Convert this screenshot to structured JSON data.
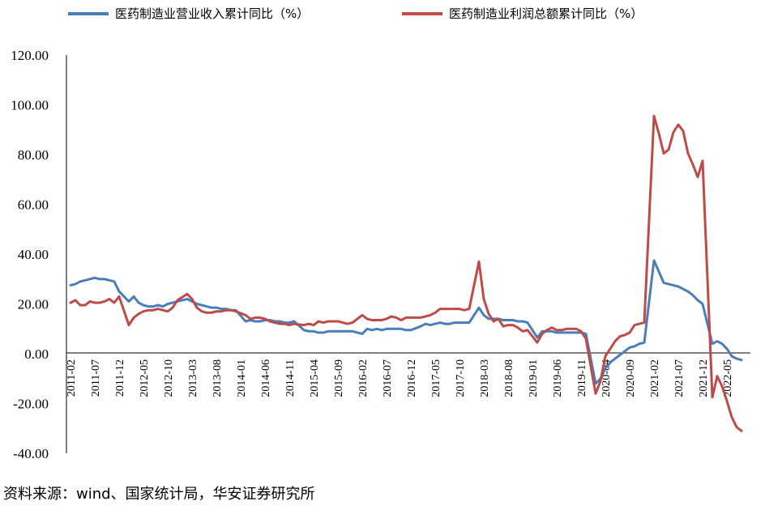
{
  "chart_data": {
    "type": "line",
    "title": "",
    "xlabel": "",
    "ylabel": "",
    "ylim": [
      -40,
      120
    ],
    "yticks": [
      "120.00",
      "100.00",
      "80.00",
      "60.00",
      "40.00",
      "20.00",
      "0.00",
      "-20.00",
      "-40.00"
    ],
    "xticks": [
      "2011-02",
      "2011-07",
      "2011-12",
      "2012-05",
      "2012-10",
      "2013-03",
      "2013-08",
      "2014-01",
      "2014-06",
      "2014-11",
      "2015-04",
      "2015-09",
      "2016-02",
      "2016-07",
      "2016-12",
      "2017-05",
      "2017-10",
      "2018-03",
      "2018-08",
      "2019-01",
      "2019-06",
      "2019-11",
      "2020-04",
      "2020-09",
      "2021-02",
      "2021-07",
      "2021-12",
      "2022-05"
    ],
    "grid": false,
    "legend_position": "top",
    "series": [
      {
        "name": "医药制造业营业收入累计同比（%）",
        "color": "#4A7EBB",
        "points": [
          [
            "2011-02",
            27.5
          ],
          [
            "2011-03",
            28.0
          ],
          [
            "2011-04",
            29.0
          ],
          [
            "2011-05",
            29.5
          ],
          [
            "2011-06",
            30.0
          ],
          [
            "2011-07",
            30.5
          ],
          [
            "2011-08",
            30.0
          ],
          [
            "2011-09",
            30.0
          ],
          [
            "2011-10",
            29.5
          ],
          [
            "2011-11",
            29.0
          ],
          [
            "2011-12",
            25.0
          ],
          [
            "2012-02",
            21.0
          ],
          [
            "2012-03",
            23.0
          ],
          [
            "2012-04",
            20.5
          ],
          [
            "2012-05",
            19.5
          ],
          [
            "2012-06",
            19.0
          ],
          [
            "2012-07",
            19.0
          ],
          [
            "2012-08",
            19.5
          ],
          [
            "2012-09",
            19.0
          ],
          [
            "2012-10",
            20.0
          ],
          [
            "2012-11",
            20.5
          ],
          [
            "2012-12",
            21.0
          ],
          [
            "2013-02",
            22.0
          ],
          [
            "2013-03",
            21.0
          ],
          [
            "2013-04",
            20.0
          ],
          [
            "2013-05",
            19.5
          ],
          [
            "2013-06",
            19.0
          ],
          [
            "2013-07",
            18.5
          ],
          [
            "2013-08",
            18.5
          ],
          [
            "2013-09",
            18.0
          ],
          [
            "2013-10",
            18.0
          ],
          [
            "2013-11",
            17.5
          ],
          [
            "2013-12",
            17.5
          ],
          [
            "2014-02",
            13.0
          ],
          [
            "2014-03",
            13.5
          ],
          [
            "2014-04",
            13.0
          ],
          [
            "2014-05",
            13.0
          ],
          [
            "2014-06",
            13.5
          ],
          [
            "2014-07",
            13.5
          ],
          [
            "2014-08",
            13.0
          ],
          [
            "2014-09",
            13.0
          ],
          [
            "2014-10",
            12.5
          ],
          [
            "2014-11",
            12.5
          ],
          [
            "2014-12",
            13.0
          ],
          [
            "2015-02",
            9.5
          ],
          [
            "2015-03",
            9.0
          ],
          [
            "2015-04",
            9.0
          ],
          [
            "2015-05",
            8.5
          ],
          [
            "2015-06",
            8.5
          ],
          [
            "2015-07",
            9.0
          ],
          [
            "2015-08",
            9.0
          ],
          [
            "2015-09",
            9.0
          ],
          [
            "2015-10",
            9.0
          ],
          [
            "2015-11",
            9.0
          ],
          [
            "2015-12",
            9.0
          ],
          [
            "2016-02",
            8.0
          ],
          [
            "2016-03",
            10.0
          ],
          [
            "2016-04",
            9.5
          ],
          [
            "2016-05",
            10.0
          ],
          [
            "2016-06",
            9.5
          ],
          [
            "2016-07",
            10.0
          ],
          [
            "2016-08",
            10.0
          ],
          [
            "2016-09",
            10.0
          ],
          [
            "2016-10",
            10.0
          ],
          [
            "2016-11",
            9.5
          ],
          [
            "2016-12",
            9.5
          ],
          [
            "2017-02",
            11.0
          ],
          [
            "2017-03",
            12.0
          ],
          [
            "2017-04",
            11.5
          ],
          [
            "2017-05",
            12.0
          ],
          [
            "2017-06",
            12.5
          ],
          [
            "2017-07",
            12.0
          ],
          [
            "2017-08",
            12.0
          ],
          [
            "2017-09",
            12.5
          ],
          [
            "2017-10",
            12.5
          ],
          [
            "2017-11",
            12.5
          ],
          [
            "2017-12",
            12.5
          ],
          [
            "2018-02",
            18.5
          ],
          [
            "2018-03",
            15.5
          ],
          [
            "2018-04",
            14.0
          ],
          [
            "2018-05",
            14.0
          ],
          [
            "2018-06",
            14.0
          ],
          [
            "2018-07",
            13.5
          ],
          [
            "2018-08",
            13.5
          ],
          [
            "2018-09",
            13.5
          ],
          [
            "2018-10",
            13.0
          ],
          [
            "2018-11",
            13.0
          ],
          [
            "2018-12",
            12.5
          ],
          [
            "2019-02",
            6.5
          ],
          [
            "2019-03",
            9.0
          ],
          [
            "2019-04",
            9.0
          ],
          [
            "2019-05",
            9.0
          ],
          [
            "2019-06",
            8.5
          ],
          [
            "2019-07",
            8.5
          ],
          [
            "2019-08",
            8.5
          ],
          [
            "2019-09",
            8.5
          ],
          [
            "2019-10",
            8.5
          ],
          [
            "2019-11",
            8.5
          ],
          [
            "2019-12",
            8.0
          ],
          [
            "2020-02",
            -12.0
          ],
          [
            "2020-03",
            -10.0
          ],
          [
            "2020-04",
            -6.0
          ],
          [
            "2020-05",
            -3.5
          ],
          [
            "2020-06",
            -2.0
          ],
          [
            "2020-07",
            -0.5
          ],
          [
            "2020-08",
            1.0
          ],
          [
            "2020-09",
            2.5
          ],
          [
            "2020-10",
            3.0
          ],
          [
            "2020-11",
            4.0
          ],
          [
            "2020-12",
            4.5
          ],
          [
            "2021-02",
            37.5
          ],
          [
            "2021-03",
            33.0
          ],
          [
            "2021-04",
            28.5
          ],
          [
            "2021-05",
            28.0
          ],
          [
            "2021-06",
            27.5
          ],
          [
            "2021-07",
            27.0
          ],
          [
            "2021-08",
            26.0
          ],
          [
            "2021-09",
            25.0
          ],
          [
            "2021-10",
            23.5
          ],
          [
            "2021-11",
            21.5
          ],
          [
            "2021-12",
            20.0
          ],
          [
            "2022-02",
            4.0
          ],
          [
            "2022-03",
            5.0
          ],
          [
            "2022-04",
            4.0
          ],
          [
            "2022-05",
            2.0
          ],
          [
            "2022-06",
            -1.0
          ],
          [
            "2022-07",
            -2.0
          ],
          [
            "2022-08",
            -2.5
          ]
        ]
      },
      {
        "name": "医药制造业利润总额累计同比（%）",
        "color": "#BE4B48",
        "points": [
          [
            "2011-02",
            20.5
          ],
          [
            "2011-03",
            21.5
          ],
          [
            "2011-04",
            19.5
          ],
          [
            "2011-05",
            19.5
          ],
          [
            "2011-06",
            21.0
          ],
          [
            "2011-07",
            20.5
          ],
          [
            "2011-08",
            20.5
          ],
          [
            "2011-09",
            21.0
          ],
          [
            "2011-10",
            22.0
          ],
          [
            "2011-11",
            20.5
          ],
          [
            "2011-12",
            23.0
          ],
          [
            "2012-02",
            11.5
          ],
          [
            "2012-03",
            14.5
          ],
          [
            "2012-04",
            16.0
          ],
          [
            "2012-05",
            17.0
          ],
          [
            "2012-06",
            17.5
          ],
          [
            "2012-07",
            17.5
          ],
          [
            "2012-08",
            18.0
          ],
          [
            "2012-09",
            17.5
          ],
          [
            "2012-10",
            17.0
          ],
          [
            "2012-11",
            18.5
          ],
          [
            "2012-12",
            21.5
          ],
          [
            "2013-02",
            24.0
          ],
          [
            "2013-03",
            22.0
          ],
          [
            "2013-04",
            18.5
          ],
          [
            "2013-05",
            17.0
          ],
          [
            "2013-06",
            16.5
          ],
          [
            "2013-07",
            16.5
          ],
          [
            "2013-08",
            17.0
          ],
          [
            "2013-09",
            17.0
          ],
          [
            "2013-10",
            17.5
          ],
          [
            "2013-11",
            17.5
          ],
          [
            "2013-12",
            17.0
          ],
          [
            "2014-02",
            15.5
          ],
          [
            "2014-03",
            14.0
          ],
          [
            "2014-04",
            14.5
          ],
          [
            "2014-05",
            14.5
          ],
          [
            "2014-06",
            14.0
          ],
          [
            "2014-07",
            13.0
          ],
          [
            "2014-08",
            12.5
          ],
          [
            "2014-09",
            12.0
          ],
          [
            "2014-10",
            12.0
          ],
          [
            "2014-11",
            11.5
          ],
          [
            "2014-12",
            12.0
          ],
          [
            "2015-02",
            11.5
          ],
          [
            "2015-03",
            12.0
          ],
          [
            "2015-04",
            11.5
          ],
          [
            "2015-05",
            13.0
          ],
          [
            "2015-06",
            12.5
          ],
          [
            "2015-07",
            13.0
          ],
          [
            "2015-08",
            13.0
          ],
          [
            "2015-09",
            13.0
          ],
          [
            "2015-10",
            12.5
          ],
          [
            "2015-11",
            12.0
          ],
          [
            "2015-12",
            12.5
          ],
          [
            "2016-02",
            15.5
          ],
          [
            "2016-03",
            14.0
          ],
          [
            "2016-04",
            13.5
          ],
          [
            "2016-05",
            13.5
          ],
          [
            "2016-06",
            13.5
          ],
          [
            "2016-07",
            14.0
          ],
          [
            "2016-08",
            15.0
          ],
          [
            "2016-09",
            14.5
          ],
          [
            "2016-10",
            13.5
          ],
          [
            "2016-11",
            14.5
          ],
          [
            "2016-12",
            14.5
          ],
          [
            "2017-02",
            14.5
          ],
          [
            "2017-03",
            15.0
          ],
          [
            "2017-04",
            15.5
          ],
          [
            "2017-05",
            16.5
          ],
          [
            "2017-06",
            18.0
          ],
          [
            "2017-07",
            18.0
          ],
          [
            "2017-08",
            18.0
          ],
          [
            "2017-09",
            18.0
          ],
          [
            "2017-10",
            18.0
          ],
          [
            "2017-11",
            17.5
          ],
          [
            "2017-12",
            18.0
          ],
          [
            "2018-02",
            37.0
          ],
          [
            "2018-03",
            22.0
          ],
          [
            "2018-04",
            16.0
          ],
          [
            "2018-05",
            13.0
          ],
          [
            "2018-06",
            14.0
          ],
          [
            "2018-07",
            11.0
          ],
          [
            "2018-08",
            11.5
          ],
          [
            "2018-09",
            11.5
          ],
          [
            "2018-10",
            10.5
          ],
          [
            "2018-11",
            9.0
          ],
          [
            "2018-12",
            9.5
          ],
          [
            "2019-02",
            4.5
          ],
          [
            "2019-03",
            8.0
          ],
          [
            "2019-04",
            9.5
          ],
          [
            "2019-05",
            10.5
          ],
          [
            "2019-06",
            9.5
          ],
          [
            "2019-07",
            9.5
          ],
          [
            "2019-08",
            10.0
          ],
          [
            "2019-09",
            10.0
          ],
          [
            "2019-10",
            10.0
          ],
          [
            "2019-11",
            9.0
          ],
          [
            "2019-12",
            6.0
          ],
          [
            "2020-02",
            -16.0
          ],
          [
            "2020-03",
            -11.0
          ],
          [
            "2020-04",
            -1.0
          ],
          [
            "2020-05",
            2.0
          ],
          [
            "2020-06",
            5.0
          ],
          [
            "2020-07",
            7.0
          ],
          [
            "2020-08",
            7.5
          ],
          [
            "2020-09",
            8.5
          ],
          [
            "2020-10",
            11.5
          ],
          [
            "2020-11",
            12.0
          ],
          [
            "2020-12",
            12.5
          ],
          [
            "2021-02",
            95.5
          ],
          [
            "2021-03",
            88.5
          ],
          [
            "2021-04",
            80.5
          ],
          [
            "2021-05",
            82.0
          ],
          [
            "2021-06",
            89.0
          ],
          [
            "2021-07",
            92.0
          ],
          [
            "2021-08",
            89.5
          ],
          [
            "2021-09",
            80.5
          ],
          [
            "2021-10",
            76.0
          ],
          [
            "2021-11",
            71.0
          ],
          [
            "2021-12",
            77.5
          ],
          [
            "2022-02",
            -17.5
          ],
          [
            "2022-03",
            -9.0
          ],
          [
            "2022-04",
            -13.0
          ],
          [
            "2022-05",
            -19.0
          ],
          [
            "2022-06",
            -25.5
          ],
          [
            "2022-07",
            -29.5
          ],
          [
            "2022-08",
            -31.0
          ]
        ]
      }
    ]
  },
  "source_note": "资料来源：wind、国家统计局，华安证券研究所"
}
